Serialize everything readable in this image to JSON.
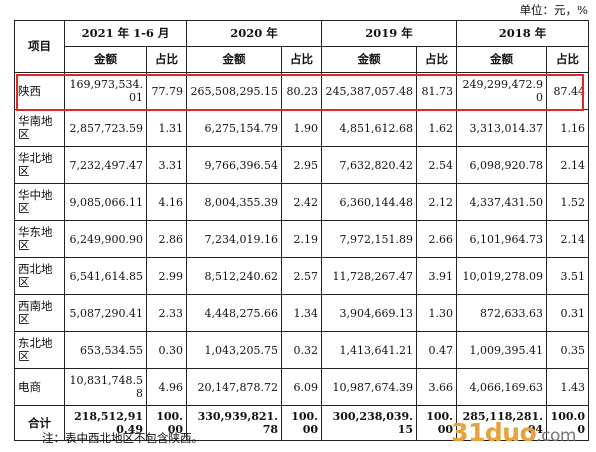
{
  "unit_label": "单位：元，%",
  "header": {
    "project": "项目",
    "periods": [
      "2021 年 1-6 月",
      "2020 年",
      "2019 年",
      "2018 年"
    ],
    "amount": "金额",
    "ratio": "占比"
  },
  "rows": [
    {
      "region": "陕西",
      "v": [
        "169,973,534.01",
        "77.79",
        "265,508,295.15",
        "80.23",
        "245,387,057.48",
        "81.73",
        "249,299,472.90",
        "87.44"
      ]
    },
    {
      "region": "华南地区",
      "v": [
        "2,857,723.59",
        "1.31",
        "6,275,154.79",
        "1.90",
        "4,851,612.68",
        "1.62",
        "3,313,014.37",
        "1.16"
      ]
    },
    {
      "region": "华北地区",
      "v": [
        "7,232,497.47",
        "3.31",
        "9,766,396.54",
        "2.95",
        "7,632,820.42",
        "2.54",
        "6,098,920.78",
        "2.14"
      ]
    },
    {
      "region": "华中地区",
      "v": [
        "9,085,066.11",
        "4.16",
        "8,004,355.39",
        "2.42",
        "6,360,144.48",
        "2.12",
        "4,337,431.50",
        "1.52"
      ]
    },
    {
      "region": "华东地区",
      "v": [
        "6,249,900.90",
        "2.86",
        "7,234,019.16",
        "2.19",
        "7,972,151.89",
        "2.66",
        "6,101,964.73",
        "2.14"
      ]
    },
    {
      "region": "西北地区",
      "v": [
        "6,541,614.85",
        "2.99",
        "8,512,240.62",
        "2.57",
        "11,728,267.47",
        "3.91",
        "10,019,278.09",
        "3.51"
      ]
    },
    {
      "region": "西南地区",
      "v": [
        "5,087,290.41",
        "2.33",
        "4,448,275.66",
        "1.34",
        "3,904,669.13",
        "1.30",
        "872,633.63",
        "0.31"
      ]
    },
    {
      "region": "东北地区",
      "v": [
        "653,534.55",
        "0.30",
        "1,043,205.75",
        "0.32",
        "1,413,641.21",
        "0.47",
        "1,009,395.41",
        "0.35"
      ]
    },
    {
      "region": "电商",
      "v": [
        "10,831,748.58",
        "4.96",
        "20,147,878.72",
        "6.09",
        "10,987,674.39",
        "3.66",
        "4,066,169.63",
        "1.43"
      ]
    }
  ],
  "total": {
    "region": "合计",
    "v": [
      "218,512,910.49",
      "100.00",
      "330,939,821.78",
      "100.00",
      "300,238,039.15",
      "100.00",
      "285,118,281.04",
      "100.00"
    ]
  },
  "note": "注：表中西北地区不包含陕西。",
  "watermark": {
    "main": "31duo",
    "suffix": ".com"
  },
  "colors": {
    "highlight": "#e02828",
    "watermark": "#e9a23a"
  }
}
